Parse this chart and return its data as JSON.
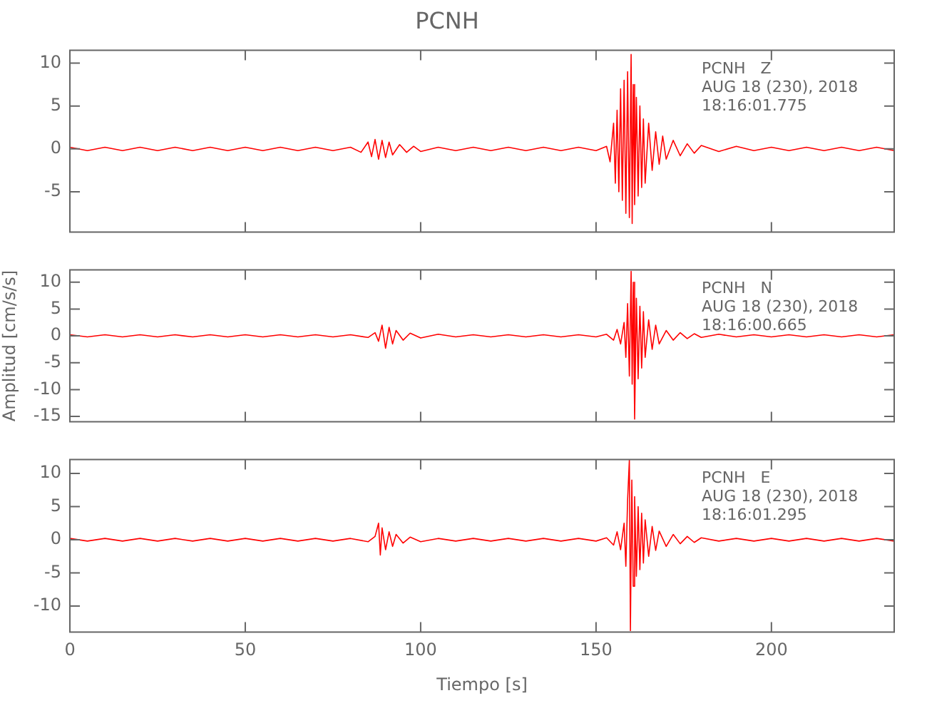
{
  "chart_data": [
    {
      "type": "line",
      "title": "PCNH",
      "annotations": [
        "PCNH   Z",
        "AUG 18 (230), 2018",
        "18:16:01.775"
      ],
      "tick_labels": "y",
      "xlim": [
        0,
        235
      ],
      "xticks": [
        0,
        50,
        100,
        150,
        200
      ],
      "ylim": [
        -9.7,
        11.5
      ],
      "yticks": [
        -5,
        0,
        5,
        10
      ],
      "x": [
        0,
        5,
        10,
        15,
        20,
        25,
        30,
        35,
        40,
        45,
        50,
        55,
        60,
        65,
        70,
        75,
        80,
        83,
        85,
        86,
        87,
        88,
        89,
        90,
        91,
        92,
        94,
        96,
        98,
        100,
        105,
        110,
        115,
        120,
        125,
        130,
        135,
        140,
        145,
        150,
        153,
        154,
        155,
        155.5,
        156,
        156.5,
        157,
        157.5,
        158,
        158.5,
        159,
        159.5,
        160,
        160.3,
        160.6,
        161,
        161.5,
        162,
        162.5,
        163,
        163.5,
        164,
        165,
        166,
        167,
        168,
        169,
        170,
        172,
        174,
        176,
        178,
        180,
        185,
        190,
        195,
        200,
        205,
        210,
        215,
        220,
        225,
        230,
        235
      ],
      "series": [
        {
          "color": "#ff0000",
          "values": [
            0.2,
            -0.2,
            0.2,
            -0.2,
            0.2,
            -0.2,
            0.2,
            -0.2,
            0.2,
            -0.2,
            0.2,
            -0.2,
            0.2,
            -0.2,
            0.2,
            -0.2,
            0.2,
            -0.4,
            0.8,
            -0.9,
            1.1,
            -1.2,
            1.0,
            -1.0,
            0.8,
            -0.7,
            0.5,
            -0.4,
            0.3,
            -0.3,
            0.2,
            -0.2,
            0.2,
            -0.2,
            0.2,
            -0.2,
            0.2,
            -0.2,
            0.2,
            -0.2,
            0.3,
            -1.5,
            3,
            -4,
            4.5,
            -5,
            7,
            -6,
            8,
            -7.5,
            9,
            -8,
            11,
            -8.7,
            7.5,
            -6.5,
            6,
            -5.5,
            5,
            -4.5,
            3.5,
            -4,
            3,
            -2.5,
            2,
            -1.8,
            1.5,
            -1.2,
            1,
            -0.8,
            0.6,
            -0.5,
            0.4,
            -0.3,
            0.3,
            -0.2,
            0.2,
            -0.2,
            0.2,
            -0.2,
            0.2,
            -0.2,
            0.2,
            -0.2
          ]
        }
      ]
    },
    {
      "type": "line",
      "ylabel": "Amplitud [cm/s/s]",
      "annotations": [
        "PCNH   N",
        "AUG 18 (230), 2018",
        "18:16:00.665"
      ],
      "tick_labels": "y",
      "xlim": [
        0,
        235
      ],
      "xticks": [
        0,
        50,
        100,
        150,
        200
      ],
      "ylim": [
        -16,
        12.3
      ],
      "yticks": [
        -15,
        -10,
        -5,
        0,
        5,
        10
      ],
      "x": [
        0,
        5,
        10,
        15,
        20,
        25,
        30,
        35,
        40,
        45,
        50,
        55,
        60,
        65,
        70,
        75,
        80,
        85,
        87,
        88,
        89,
        90,
        91,
        92,
        93,
        95,
        97,
        100,
        105,
        110,
        115,
        120,
        125,
        130,
        135,
        140,
        145,
        150,
        153,
        155,
        156,
        157,
        158,
        158.5,
        159,
        159.5,
        160,
        160.3,
        160.6,
        161,
        161.5,
        162,
        162.5,
        163,
        163.5,
        164,
        165,
        166,
        167,
        168,
        170,
        172,
        174,
        176,
        178,
        180,
        185,
        190,
        195,
        200,
        205,
        210,
        215,
        220,
        225,
        230,
        235
      ],
      "series": [
        {
          "color": "#ff0000",
          "values": [
            0.2,
            -0.2,
            0.2,
            -0.2,
            0.2,
            -0.2,
            0.2,
            -0.2,
            0.2,
            -0.2,
            0.2,
            -0.2,
            0.2,
            -0.2,
            0.2,
            -0.2,
            0.2,
            -0.3,
            0.6,
            -1.0,
            2.0,
            -2.3,
            1.6,
            -1.5,
            1.0,
            -0.8,
            0.5,
            -0.4,
            0.3,
            -0.2,
            0.2,
            -0.2,
            0.2,
            -0.2,
            0.2,
            -0.2,
            0.2,
            -0.2,
            0.3,
            -0.8,
            1.2,
            -1.5,
            2.5,
            -4,
            6,
            -7.5,
            12,
            -9,
            10,
            -15.5,
            7,
            -8,
            5.5,
            -6,
            4.5,
            -4,
            3,
            -2.5,
            2,
            -1.5,
            1,
            -0.8,
            0.6,
            -0.5,
            0.4,
            -0.3,
            0.3,
            -0.2,
            0.2,
            -0.2,
            0.2,
            -0.2,
            0.2,
            -0.2,
            0.2,
            -0.2,
            0.2
          ]
        }
      ]
    },
    {
      "type": "line",
      "xlabel": "Tiempo [s]",
      "annotations": [
        "PCNH   E",
        "AUG 18 (230), 2018",
        "18:16:01.295"
      ],
      "xlim": [
        0,
        235
      ],
      "xticks": [
        0,
        50,
        100,
        150,
        200
      ],
      "ylim": [
        -13.9,
        12.1
      ],
      "yticks": [
        -10,
        -5,
        0,
        5,
        10
      ],
      "x": [
        0,
        5,
        10,
        15,
        20,
        25,
        30,
        35,
        40,
        45,
        50,
        55,
        60,
        65,
        70,
        75,
        80,
        85,
        87,
        88,
        88.5,
        89,
        90,
        91,
        92,
        93,
        95,
        97,
        100,
        105,
        110,
        115,
        120,
        125,
        130,
        135,
        140,
        145,
        150,
        153,
        155,
        156,
        157,
        158,
        158.5,
        159,
        159.5,
        159.8,
        160.2,
        160.6,
        161,
        161.5,
        162,
        162.5,
        163,
        163.5,
        164,
        165,
        166,
        167,
        168,
        170,
        172,
        174,
        176,
        178,
        180,
        185,
        190,
        195,
        200,
        205,
        210,
        215,
        220,
        225,
        230,
        235
      ],
      "series": [
        {
          "color": "#ff0000",
          "values": [
            0.2,
            -0.2,
            0.2,
            -0.2,
            0.2,
            -0.2,
            0.2,
            -0.2,
            0.2,
            -0.2,
            0.2,
            -0.2,
            0.2,
            -0.2,
            0.2,
            -0.2,
            0.2,
            -0.3,
            0.5,
            2.5,
            -2.3,
            1.8,
            -1.5,
            1.2,
            -1.0,
            0.8,
            -0.5,
            0.4,
            -0.3,
            0.2,
            -0.2,
            0.2,
            -0.2,
            0.2,
            -0.2,
            0.2,
            -0.2,
            0.2,
            -0.2,
            0.3,
            -0.8,
            1.2,
            -1.5,
            2.5,
            -4,
            6,
            12,
            -13.7,
            9,
            -7,
            6.5,
            -5.5,
            5,
            -4.5,
            4,
            -3.5,
            3,
            -2.5,
            2,
            -1.6,
            1.3,
            -1,
            0.8,
            -0.6,
            0.5,
            -0.4,
            0.3,
            -0.2,
            0.2,
            -0.2,
            0.2,
            -0.2,
            0.2,
            -0.2,
            0.2,
            -0.2,
            0.2,
            -0.2
          ]
        }
      ]
    }
  ]
}
